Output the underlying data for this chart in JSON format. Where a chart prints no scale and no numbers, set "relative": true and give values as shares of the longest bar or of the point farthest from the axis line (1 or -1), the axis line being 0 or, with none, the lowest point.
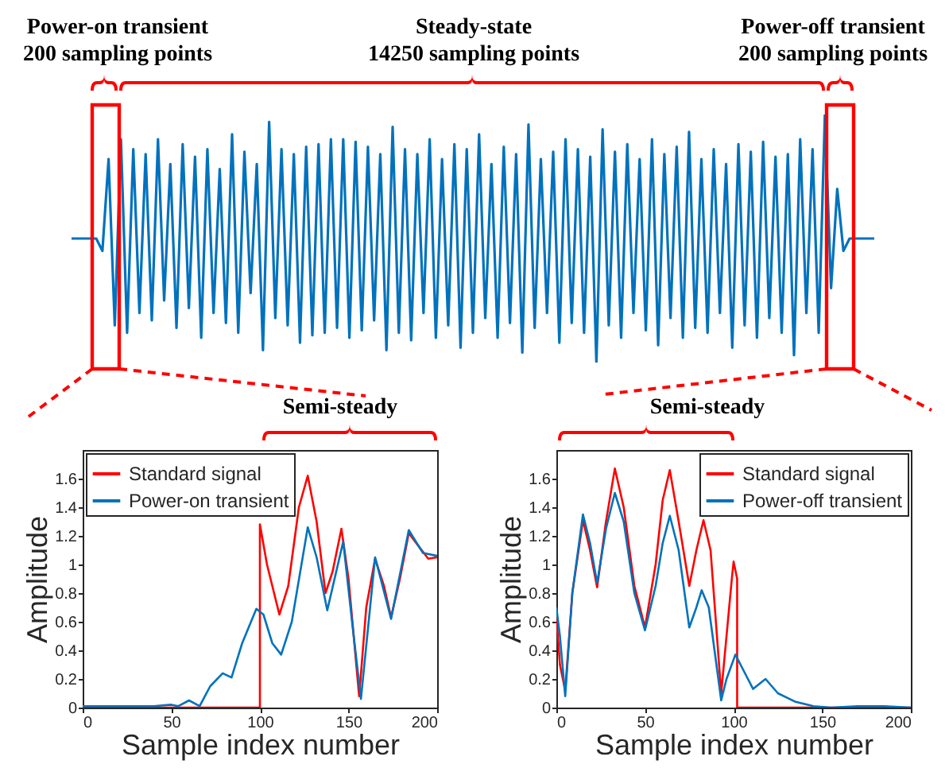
{
  "chart_data": [
    {
      "type": "line",
      "relative": true,
      "annotations": [
        "Power-on transient\n200 sampling points",
        "Steady-state\n14250 sampling points",
        "Power-off transient\n200 sampling points"
      ],
      "categories": [
        null,
        null,
        null,
        null,
        null,
        null,
        null,
        null,
        null,
        null,
        null,
        null,
        null,
        null,
        null,
        null,
        null,
        null,
        null,
        null,
        null,
        null,
        null,
        null,
        null,
        null,
        null,
        null,
        null,
        null,
        null,
        null,
        null,
        null,
        null,
        null,
        null,
        null,
        null,
        null,
        null,
        null,
        null,
        null,
        null,
        null,
        null,
        null,
        null,
        null,
        null,
        null,
        null,
        null,
        null,
        null,
        null,
        null,
        null,
        null,
        null,
        null,
        null,
        null,
        null,
        null,
        null,
        null,
        null,
        null,
        null,
        null,
        null,
        null,
        null,
        null,
        null,
        null,
        null,
        null,
        null,
        null,
        null,
        null,
        null,
        null,
        null,
        null,
        null,
        null,
        null,
        null,
        null,
        null,
        null,
        null,
        null,
        null,
        null,
        null,
        null,
        null,
        null,
        null,
        null,
        null,
        null,
        null,
        null,
        null,
        null,
        null,
        null,
        null,
        null,
        null,
        null,
        null,
        null,
        null,
        null,
        null,
        null,
        null,
        null,
        null,
        null,
        null,
        null,
        null,
        null
      ],
      "series": [
        {
          "color": "#0072bd",
          "values": [
            0.5,
            0.5,
            0.5,
            0.5,
            0.5,
            0.45,
            0.82,
            0.15,
            0.9,
            0.12,
            0.86,
            0.2,
            0.84,
            0.17,
            0.9,
            0.25,
            0.8,
            0.14,
            0.88,
            0.22,
            0.83,
            0.1,
            0.86,
            0.2,
            0.78,
            0.16,
            0.92,
            0.12,
            0.85,
            0.28,
            0.8,
            0.05,
            0.97,
            0.18,
            0.86,
            0.15,
            0.84,
            0.08,
            0.87,
            0.11,
            0.88,
            0.12,
            0.9,
            0.14,
            0.9,
            0.1,
            0.89,
            0.13,
            0.87,
            0.17,
            0.84,
            0.05,
            0.95,
            0.12,
            0.86,
            0.09,
            0.84,
            0.2,
            0.9,
            0.1,
            0.82,
            0.15,
            0.88,
            0.06,
            0.86,
            0.12,
            0.92,
            0.18,
            0.8,
            0.1,
            0.87,
            0.16,
            0.84,
            0.04,
            0.96,
            0.14,
            0.82,
            0.2,
            0.85,
            0.08,
            0.9,
            0.16,
            0.86,
            0.12,
            0.83,
            0,
            0.94,
            0.15,
            0.85,
            0.1,
            0.88,
            0.2,
            0.82,
            0.13,
            0.9,
            0.07,
            0.84,
            0.18,
            0.87,
            0.1,
            0.93,
            0.14,
            0.82,
            0.12,
            0.86,
            0.2,
            0.8,
            0.06,
            0.88,
            0.15,
            0.85,
            0.1,
            0.89,
            0.18,
            0.83,
            0.12,
            0.84,
            0.03,
            0.9,
            0.2,
            0.86,
            0.12,
            1.0,
            0.3,
            0.7,
            0.45,
            0.5,
            0.5,
            0.5,
            0.5,
            0.5
          ]
        }
      ]
    },
    {
      "type": "line",
      "xlabel": "Sample index number",
      "ylabel": "Amplitude",
      "annotations": [
        "Semi-steady"
      ],
      "legend": "top left",
      "xlim": [
        0,
        200
      ],
      "xticks": [
        0,
        50,
        100,
        150,
        200
      ],
      "ylim": [
        0,
        1.8
      ],
      "yticks": [
        0,
        0.2,
        0.4,
        0.6,
        0.8,
        1,
        1.2,
        1.4,
        1.6
      ],
      "series": [
        {
          "name": "Standard signal",
          "color": "#ff0000",
          "x": [
            0,
            100,
            100,
            104,
            111,
            116,
            122,
            127,
            132,
            137,
            141,
            146,
            150,
            156,
            160,
            165,
            170,
            174,
            179,
            184,
            190,
            195,
            200
          ],
          "values": [
            0,
            0,
            1.28,
            1.0,
            0.65,
            0.85,
            1.4,
            1.62,
            1.3,
            0.8,
            0.95,
            1.25,
            0.9,
            0.08,
            0.7,
            1.04,
            0.85,
            0.63,
            0.9,
            1.22,
            1.12,
            1.04,
            1.05
          ]
        },
        {
          "name": "Power-on transient",
          "color": "#0072bd",
          "x": [
            0,
            10,
            20,
            30,
            40,
            50,
            54,
            60,
            66,
            72,
            79,
            84,
            90,
            98,
            102,
            107,
            112,
            118,
            127,
            132,
            138,
            147,
            152,
            157,
            165,
            174,
            184,
            192,
            200
          ],
          "values": [
            0.01,
            0.01,
            0.01,
            0.01,
            0.01,
            0.02,
            0.01,
            0.05,
            0.01,
            0.15,
            0.24,
            0.21,
            0.45,
            0.69,
            0.65,
            0.45,
            0.37,
            0.6,
            1.26,
            1.05,
            0.68,
            1.16,
            0.6,
            0.06,
            1.05,
            0.62,
            1.24,
            1.08,
            1.06
          ]
        }
      ]
    },
    {
      "type": "line",
      "xlabel": "Sample index number",
      "ylabel": "Amplitude",
      "annotations": [
        "Semi-steady"
      ],
      "legend": "top right",
      "xlim": [
        0,
        200
      ],
      "xticks": [
        0,
        50,
        100,
        150,
        200
      ],
      "ylim": [
        0,
        1.8
      ],
      "yticks": [
        0,
        0.2,
        0.4,
        0.6,
        0.8,
        1,
        1.2,
        1.4,
        1.6
      ],
      "series": [
        {
          "name": "Standard signal",
          "color": "#ff0000",
          "x": [
            0,
            2,
            5,
            9,
            15,
            19,
            23,
            28,
            33,
            38,
            44,
            50,
            56,
            60,
            64,
            69,
            75,
            79,
            83,
            87,
            90,
            93,
            96,
            99,
            100,
            102,
            102,
            200
          ],
          "values": [
            0.65,
            0.3,
            0.12,
            0.8,
            1.31,
            1.1,
            0.84,
            1.3,
            1.67,
            1.4,
            0.85,
            0.56,
            1.0,
            1.45,
            1.66,
            1.3,
            0.85,
            1.1,
            1.31,
            1.1,
            0.6,
            0.1,
            0.5,
            0.9,
            1.02,
            0.9,
            0,
            0
          ]
        },
        {
          "name": "Power-off transient",
          "color": "#0072bd",
          "x": [
            0,
            2,
            5,
            9,
            15,
            19,
            23,
            28,
            33,
            38,
            44,
            50,
            56,
            60,
            64,
            69,
            75,
            79,
            82,
            86,
            93,
            96,
            101,
            106,
            111,
            118,
            125,
            135,
            145,
            155,
            170,
            185,
            200
          ],
          "values": [
            0.7,
            0.5,
            0.08,
            0.8,
            1.35,
            1.15,
            0.87,
            1.25,
            1.5,
            1.3,
            0.8,
            0.54,
            0.85,
            1.15,
            1.34,
            1.1,
            0.56,
            0.7,
            0.82,
            0.7,
            0.05,
            0.2,
            0.37,
            0.25,
            0.13,
            0.2,
            0.1,
            0.04,
            0.01,
            0,
            0.01,
            0.01,
            0
          ]
        }
      ]
    }
  ]
}
